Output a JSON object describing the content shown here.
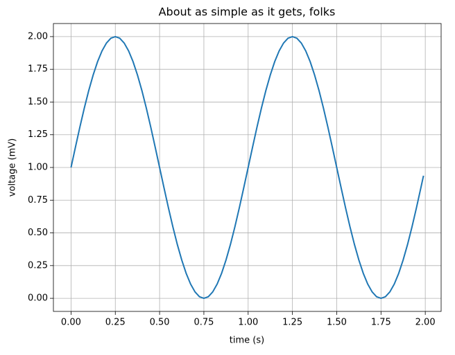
{
  "chart_data": {
    "type": "line",
    "title": "About as simple as it gets, folks",
    "xlabel": "time (s)",
    "ylabel": "voltage (mV)",
    "x": [
      0,
      0.025,
      0.05,
      0.075,
      0.1,
      0.125,
      0.15,
      0.175,
      0.2,
      0.225,
      0.25,
      0.275,
      0.3,
      0.325,
      0.35,
      0.375,
      0.4,
      0.425,
      0.45,
      0.475,
      0.5,
      0.525,
      0.55,
      0.575,
      0.6,
      0.625,
      0.65,
      0.675,
      0.7,
      0.725,
      0.75,
      0.775,
      0.8,
      0.825,
      0.85,
      0.875,
      0.9,
      0.925,
      0.95,
      0.975,
      1,
      1.025,
      1.05,
      1.075,
      1.1,
      1.125,
      1.15,
      1.175,
      1.2,
      1.225,
      1.25,
      1.275,
      1.3,
      1.325,
      1.35,
      1.375,
      1.4,
      1.425,
      1.45,
      1.475,
      1.5,
      1.525,
      1.55,
      1.575,
      1.6,
      1.625,
      1.65,
      1.675,
      1.7,
      1.725,
      1.75,
      1.775,
      1.8,
      1.825,
      1.85,
      1.875,
      1.9,
      1.925,
      1.95,
      1.975,
      1.99
    ],
    "series": [
      {
        "color": "#1f77b4",
        "values": [
          1,
          1.156,
          1.309,
          1.454,
          1.588,
          1.707,
          1.809,
          1.891,
          1.951,
          1.988,
          2,
          1.988,
          1.951,
          1.891,
          1.809,
          1.707,
          1.588,
          1.454,
          1.309,
          1.156,
          1,
          0.844,
          0.691,
          0.546,
          0.412,
          0.293,
          0.191,
          0.109,
          0.049,
          0.012,
          0,
          0.012,
          0.049,
          0.109,
          0.191,
          0.293,
          0.412,
          0.546,
          0.691,
          0.844,
          1,
          1.156,
          1.309,
          1.454,
          1.588,
          1.707,
          1.809,
          1.891,
          1.951,
          1.988,
          2,
          1.988,
          1.951,
          1.891,
          1.809,
          1.707,
          1.588,
          1.454,
          1.309,
          1.156,
          1,
          0.844,
          0.691,
          0.546,
          0.412,
          0.293,
          0.191,
          0.109,
          0.049,
          0.012,
          0,
          0.012,
          0.049,
          0.109,
          0.191,
          0.293,
          0.412,
          0.546,
          0.691,
          0.844,
          0.937
        ]
      }
    ],
    "xlim": [
      -0.0995,
      2.0895
    ],
    "ylim": [
      -0.1,
      2.1
    ],
    "xticks": [
      {
        "value": 0,
        "label": "0.00"
      },
      {
        "value": 0.25,
        "label": "0.25"
      },
      {
        "value": 0.5,
        "label": "0.50"
      },
      {
        "value": 0.75,
        "label": "0.75"
      },
      {
        "value": 1,
        "label": "1.00"
      },
      {
        "value": 1.25,
        "label": "1.25"
      },
      {
        "value": 1.5,
        "label": "1.50"
      },
      {
        "value": 1.75,
        "label": "1.75"
      },
      {
        "value": 2,
        "label": "2.00"
      }
    ],
    "yticks": [
      {
        "value": 0,
        "label": "0.00"
      },
      {
        "value": 0.25,
        "label": "0.25"
      },
      {
        "value": 0.5,
        "label": "0.50"
      },
      {
        "value": 0.75,
        "label": "0.75"
      },
      {
        "value": 1,
        "label": "1.00"
      },
      {
        "value": 1.25,
        "label": "1.25"
      },
      {
        "value": 1.5,
        "label": "1.50"
      },
      {
        "value": 1.75,
        "label": "1.75"
      },
      {
        "value": 2,
        "label": "2.00"
      }
    ],
    "grid": true
  }
}
